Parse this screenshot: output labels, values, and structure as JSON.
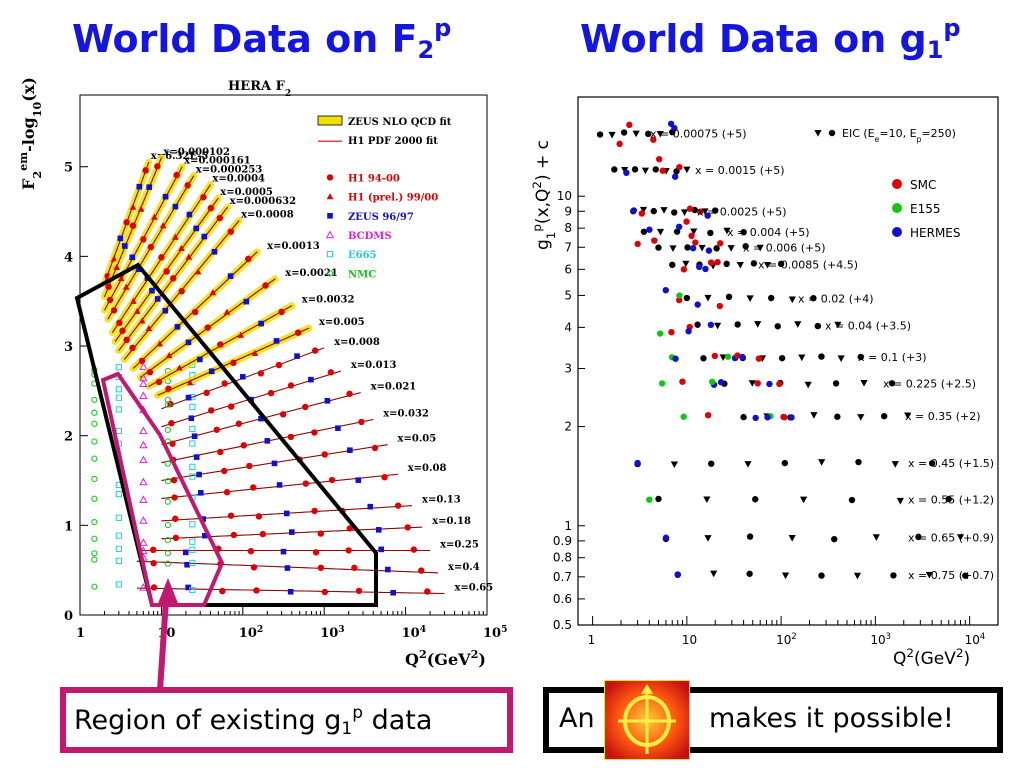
{
  "titles": {
    "left": {
      "text": "World Data on F",
      "sub": "2",
      "sup": "p"
    },
    "right": {
      "text": "World Data on g",
      "sub": "1",
      "sup": "p"
    }
  },
  "callouts": {
    "left": {
      "text": "Region of existing g",
      "sub": "1",
      "sup": "p",
      "tail": " data"
    },
    "right": {
      "head": "An",
      "tail": "makes it possible!"
    }
  },
  "colors": {
    "title": "#1515e0",
    "magenta": "#c2186e",
    "red": "#e00000",
    "blue": "#1010d0",
    "green": "#10c810",
    "yellow": "#f0e000"
  },
  "chart_data": [
    {
      "type": "scatter",
      "title": "HERA F",
      "title_sub": "2",
      "ylabel": "F",
      "ylabel_sub": "2",
      "ylabel_sup": "em",
      "ylabel_tail": "-log",
      "ylabel_tail_sub": "10",
      "ylabel_tail_end": "(x)",
      "xlabel": "Q",
      "xlabel_sup": "2",
      "xlabel_tail": "(GeV",
      "xlabel_tail_sup": "2",
      "xlabel_end": ")",
      "xscale": "log",
      "xlim": [
        1,
        100000
      ],
      "ylim": [
        0,
        5.8
      ],
      "x_ticks": [
        {
          "base": "1",
          "exp": ""
        },
        {
          "base": "10",
          "exp": ""
        },
        {
          "base": "10",
          "exp": "2"
        },
        {
          "base": "10",
          "exp": "3"
        },
        {
          "base": "10",
          "exp": "4"
        },
        {
          "base": "10",
          "exp": "5"
        }
      ],
      "y_ticks": [
        "0",
        "1",
        "2",
        "3",
        "4",
        "5"
      ],
      "legend": [
        {
          "label": "ZEUS NLO QCD fit",
          "color": "#f0e000",
          "marker": "band"
        },
        {
          "label": "H1 PDF 2000 fit",
          "color": "#e00000",
          "marker": "line"
        },
        {
          "label": "H1 94-00",
          "color": "#e00000",
          "marker": "circle"
        },
        {
          "label": "H1 (prel.) 99/00",
          "color": "#e00000",
          "marker": "triangle"
        },
        {
          "label": "ZEUS 96/97",
          "color": "#1010d0",
          "marker": "square"
        },
        {
          "label": "BCDMS",
          "color": "#e020e0",
          "marker": "open-triangle"
        },
        {
          "label": "E665",
          "color": "#20d0d0",
          "marker": "open-square"
        },
        {
          "label": "NMC",
          "color": "#10c810",
          "marker": "open-circle"
        }
      ],
      "bins": [
        {
          "label": "x=6.32E-5",
          "q2": [
            2,
            7
          ],
          "y": [
            3.7,
            5.05
          ]
        },
        {
          "label": "x=0.000102",
          "q2": [
            2,
            10
          ],
          "y": [
            3.55,
            5.1
          ]
        },
        {
          "label": "x=0.000161",
          "q2": [
            2,
            18
          ],
          "y": [
            3.4,
            5.0
          ]
        },
        {
          "label": "x=0.000253",
          "q2": [
            2.2,
            25
          ],
          "y": [
            3.3,
            4.9
          ]
        },
        {
          "label": "x=0.0004",
          "q2": [
            2.5,
            40
          ],
          "y": [
            3.15,
            4.8
          ]
        },
        {
          "label": "x=0.0005",
          "q2": [
            2.7,
            50
          ],
          "y": [
            3.05,
            4.65
          ]
        },
        {
          "label": "x=0.000632",
          "q2": [
            3,
            65
          ],
          "y": [
            2.95,
            4.55
          ]
        },
        {
          "label": "x=0.0008",
          "q2": [
            3.5,
            90
          ],
          "y": [
            2.85,
            4.4
          ]
        },
        {
          "label": "x=0.0013",
          "q2": [
            4.5,
            150
          ],
          "y": [
            2.75,
            4.05
          ]
        },
        {
          "label": "x=0.0021",
          "q2": [
            5.5,
            250
          ],
          "y": [
            2.65,
            3.75
          ]
        },
        {
          "label": "x=0.0032",
          "q2": [
            7,
            400
          ],
          "y": [
            2.55,
            3.45
          ]
        },
        {
          "label": "x=0.005",
          "q2": [
            9,
            650
          ],
          "y": [
            2.45,
            3.2
          ]
        },
        {
          "label": "x=0.008",
          "q2": [
            10,
            1000
          ],
          "y": [
            2.3,
            2.98
          ]
        },
        {
          "label": "x=0.013",
          "q2": [
            10,
            1600
          ],
          "y": [
            2.1,
            2.72
          ]
        },
        {
          "label": "x=0.021",
          "q2": [
            10,
            2800
          ],
          "y": [
            1.9,
            2.48
          ]
        },
        {
          "label": "x=0.032",
          "q2": [
            10,
            4000
          ],
          "y": [
            1.7,
            2.18
          ]
        },
        {
          "label": "x=0.05",
          "q2": [
            10,
            6000
          ],
          "y": [
            1.5,
            1.9
          ]
        },
        {
          "label": "x=0.08",
          "q2": [
            10,
            8000
          ],
          "y": [
            1.3,
            1.57
          ]
        },
        {
          "label": "x=0.13",
          "q2": [
            10,
            12000
          ],
          "y": [
            1.05,
            1.22
          ]
        },
        {
          "label": "x=0.18",
          "q2": [
            10,
            16000
          ],
          "y": [
            0.85,
            0.98
          ]
        },
        {
          "label": "x=0.25",
          "q2": [
            5,
            20000
          ],
          "y": [
            0.72,
            0.72
          ]
        },
        {
          "label": "x=0.4",
          "q2": [
            5,
            25000
          ],
          "y": [
            0.6,
            0.47
          ]
        },
        {
          "label": "x=0.65",
          "q2": [
            5,
            30000
          ],
          "y": [
            0.3,
            0.24
          ]
        }
      ]
    },
    {
      "type": "scatter",
      "ylabel": "g",
      "ylabel_sub": "1",
      "ylabel_sup": "p",
      "ylabel_tail": "(x,Q",
      "ylabel_tail_sup": "2",
      "ylabel_end": ") + c",
      "xlabel": "Q",
      "xlabel_sup": "2",
      "xlabel_tail": "(GeV",
      "xlabel_tail_sup": "2",
      "xlabel_end": ")",
      "xscale": "log",
      "yscale": "log",
      "xlim": [
        0.7,
        20000
      ],
      "ylim": [
        0.5,
        20
      ],
      "x_ticks": [
        {
          "base": "1",
          "exp": ""
        },
        {
          "base": "10",
          "exp": ""
        },
        {
          "base": "10",
          "exp": "2"
        },
        {
          "base": "10",
          "exp": "3"
        },
        {
          "base": "10",
          "exp": "4"
        }
      ],
      "y_ticks": [
        "0.5",
        "0.6",
        "0.7",
        "0.8",
        "0.9",
        "1",
        "2",
        "3",
        "4",
        "5",
        "6",
        "7",
        "8",
        "9",
        "10"
      ],
      "legend": [
        {
          "label": "EIC (E",
          "sub_e": "e",
          "mid": "=10, E",
          "sub_p": "p",
          "end": "=250)",
          "marker": "eic"
        },
        {
          "label": "SMC",
          "color": "#e00000",
          "marker": "circle"
        },
        {
          "label": "E155",
          "color": "#10c810",
          "marker": "circle"
        },
        {
          "label": "HERMES",
          "color": "#1010d0",
          "marker": "circle"
        }
      ],
      "bins": [
        {
          "label": "x = 0.00075 (+5)",
          "y": 15.5
        },
        {
          "label": "x = 0.0015 (+5)",
          "y": 12.0
        },
        {
          "label": "x = 0.0025 (+5)",
          "y": 9.0
        },
        {
          "label": "x = 0.004 (+5)",
          "y": 7.8
        },
        {
          "label": "x = 0.006 (+5)",
          "y": 7.0
        },
        {
          "label": "x = 0.0085 (+4.5)",
          "y": 6.2
        },
        {
          "label": "x = 0.02 (+4)",
          "y": 4.9
        },
        {
          "label": "x = 0.04 (+3.5)",
          "y": 4.05
        },
        {
          "label": "x = 0.1 (+3)",
          "y": 3.25
        },
        {
          "label": "x = 0.225 (+2.5)",
          "y": 2.7
        },
        {
          "label": "x = 0.35 (+2)",
          "y": 2.15
        },
        {
          "label": "x = 0.45 (+1.5)",
          "y": 1.55
        },
        {
          "label": "x = 0.55 (+1.2)",
          "y": 1.2
        },
        {
          "label": "x = 0.65 (+0.9)",
          "y": 0.92
        },
        {
          "label": "x = 0.75 (+0.7)",
          "y": 0.71
        }
      ]
    }
  ]
}
